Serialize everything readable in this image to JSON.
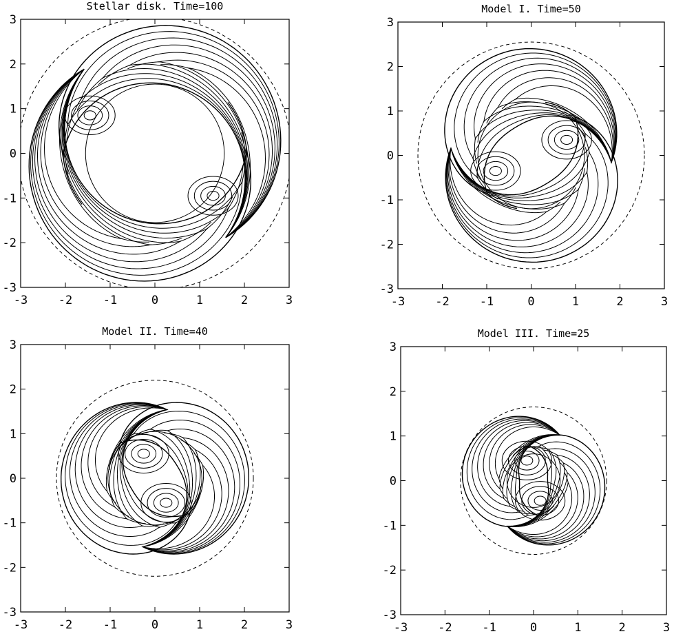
{
  "chart_data": [
    {
      "type": "contour",
      "title": "Stellar disk. Time=100",
      "xlim": [
        -3,
        3
      ],
      "ylim": [
        -3,
        3
      ],
      "xticks": [
        "-3",
        "-2",
        "-1",
        "0",
        "1",
        "2",
        "3"
      ],
      "yticks": [
        "-3",
        "-2",
        "-1",
        "0",
        "1",
        "2",
        "3"
      ],
      "grid": false,
      "solid_circle_radius": 1.55,
      "dashed_circle_radius": 3.05,
      "arm_outer_radius": 2.9,
      "arm_inner_radius": 1.55,
      "inner_contour_extent_deg": 115,
      "outer_contour_extent_deg": 265,
      "contour_levels": 7,
      "rotation_deg": 130,
      "peak_positions": [
        [
          -1.45,
          0.85
        ],
        [
          1.3,
          -0.95
        ]
      ]
    },
    {
      "type": "contour",
      "title": "Model I. Time=50",
      "xlim": [
        -3,
        3
      ],
      "ylim": [
        -3,
        3
      ],
      "xticks": [
        "-3",
        "-2",
        "-1",
        "0",
        "1",
        "2",
        "3"
      ],
      "yticks": [
        "-3",
        "-2",
        "-1",
        "0",
        "1",
        "2",
        "3"
      ],
      "grid": false,
      "solid_circle_radius": 1.2,
      "dashed_circle_radius": 2.55,
      "arm_outer_radius": 2.35,
      "arm_inner_radius": 0.7,
      "inner_contour_extent_deg": 105,
      "outer_contour_extent_deg": 260,
      "contour_levels": 7,
      "rotation_deg": 355,
      "peak_positions": [
        [
          0.8,
          0.35
        ],
        [
          -0.8,
          -0.35
        ]
      ]
    },
    {
      "type": "contour",
      "title": "Model II. Time=40",
      "xlim": [
        -3,
        3
      ],
      "ylim": [
        -3,
        3
      ],
      "xticks": [
        "-3",
        "-2",
        "-1",
        "0",
        "1",
        "2",
        "3"
      ],
      "yticks": [
        "-3",
        "-2",
        "-1",
        "0",
        "1",
        "2",
        "3"
      ],
      "grid": false,
      "solid_circle_radius": 1.05,
      "dashed_circle_radius": 2.2,
      "arm_outer_radius": 2.05,
      "arm_inner_radius": 0.55,
      "inner_contour_extent_deg": 110,
      "outer_contour_extent_deg": 270,
      "contour_levels": 7,
      "rotation_deg": 80,
      "peak_positions": [
        [
          -0.25,
          0.55
        ],
        [
          0.25,
          -0.55
        ]
      ]
    },
    {
      "type": "contour",
      "title": "Model III. Time=25",
      "xlim": [
        -3,
        3
      ],
      "ylim": [
        -3,
        3
      ],
      "xticks": [
        "-3",
        "-2",
        "-1",
        "0",
        "1",
        "2",
        "3"
      ],
      "yticks": [
        "-3",
        "-2",
        "-1",
        "0",
        "1",
        "2",
        "3"
      ],
      "grid": false,
      "solid_circle_radius": 0.6,
      "dashed_circle_radius": 1.65,
      "arm_outer_radius": 1.6,
      "arm_inner_radius": 0.3,
      "inner_contour_extent_deg": 115,
      "outer_contour_extent_deg": 250,
      "contour_levels": 7,
      "rotation_deg": 60,
      "peak_positions": [
        [
          -0.15,
          0.45
        ],
        [
          0.15,
          -0.45
        ]
      ]
    }
  ]
}
